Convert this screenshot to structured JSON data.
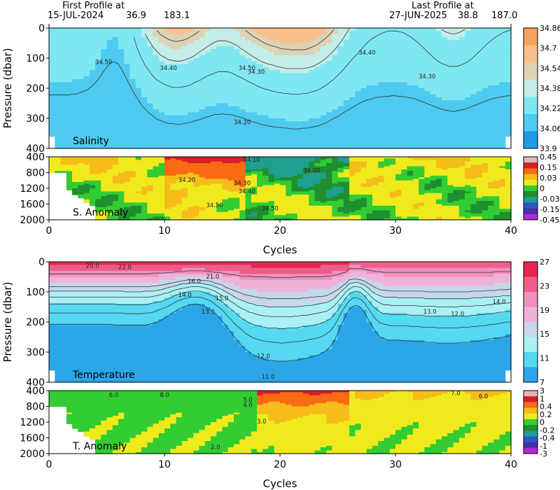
{
  "header": {
    "first_profile_label": "First Profile at",
    "first_profile_date": "15-JUL-2024",
    "first_profile_lat": "36.9",
    "first_profile_lon": "183.1",
    "last_profile_label": "Last Profile at",
    "last_profile_date": "27-JUN-2025",
    "last_profile_lat": "38.8",
    "last_profile_lon": "187.0"
  },
  "chart_data": [
    {
      "type": "heatmap",
      "name": "Salinity",
      "xlabel": "",
      "ylabel": "Pressure (dbar)",
      "xlim": [
        0,
        40
      ],
      "ylim": [
        400,
        0
      ],
      "yticks": [
        "0",
        "100",
        "200",
        "300",
        "400"
      ],
      "colorbar_labels": [
        "34.86",
        "34.7",
        "34.54",
        "34.38",
        "34.22",
        "34.06",
        "33.9"
      ],
      "colors": [
        "#f5a25a",
        "#f9c08e",
        "#ddd2b4",
        "#c4ede8",
        "#7fe7f2",
        "#4fcaf0",
        "#1c9ce8"
      ],
      "contour_labels": [
        "34.50",
        "34.50",
        "34.40",
        "34.30",
        "34.40",
        "34.30",
        "34.20"
      ]
    },
    {
      "type": "heatmap",
      "name": "S. Anomaly",
      "xlabel": "Cycles",
      "ylabel": "",
      "xlim": [
        0,
        40
      ],
      "ylim": [
        2000,
        400
      ],
      "xticks": [
        "0",
        "10",
        "20",
        "30",
        "40"
      ],
      "yticks": [
        "400",
        "800",
        "1200",
        "1600",
        "2000"
      ],
      "colorbar_labels": [
        "0.45",
        "0.15",
        "0.03",
        "0",
        "-0.03",
        "-0.15",
        "-0.45"
      ],
      "colors": [
        "#e2b6b8",
        "#d71e2a",
        "#f96a12",
        "#f5bc1a",
        "#f0ea1d",
        "#33cc33",
        "#1f8f2f",
        "#1f9f8f",
        "#2a57c7",
        "#4b2ca6",
        "#b12ad6"
      ],
      "contour_labels": [
        "34.10",
        "34.00",
        "34.20",
        "34.30",
        "34.40",
        "34.50",
        "34.50"
      ]
    },
    {
      "type": "heatmap",
      "name": "Temperature",
      "xlabel": "",
      "ylabel": "Pressure (dbar)",
      "xlim": [
        0,
        40
      ],
      "ylim": [
        400,
        0
      ],
      "yticks": [
        "0",
        "100",
        "200",
        "300",
        "400"
      ],
      "colorbar_labels": [
        "27",
        "23",
        "19",
        "15",
        "11",
        "7"
      ],
      "colors": [
        "#e5264f",
        "#ef5d88",
        "#ef8fbe",
        "#efb3d9",
        "#c6d7ec",
        "#aaf0f4",
        "#55d8f2",
        "#2aa6e8"
      ],
      "contour_labels": [
        "20.0",
        "22.0",
        "21.0",
        "16.0",
        "15.0",
        "14.0",
        "13.0",
        "14.0",
        "13.0",
        "12.0",
        "12.0",
        "11.0"
      ]
    },
    {
      "type": "heatmap",
      "name": "T. Anomaly",
      "xlabel": "Cycles",
      "ylabel": "",
      "xlim": [
        0,
        40
      ],
      "ylim": [
        2000,
        400
      ],
      "xticks": [
        "0",
        "10",
        "20",
        "30",
        "40"
      ],
      "yticks": [
        "400",
        "800",
        "1200",
        "1600",
        "2000"
      ],
      "colorbar_labels": [
        "3",
        "1",
        "0.4",
        "0.2",
        "0",
        "-0.2",
        "-0.4",
        "-1",
        "-3"
      ],
      "colors": [
        "#e2b6b8",
        "#d71e2a",
        "#f96a12",
        "#f5bc1a",
        "#f0ea1d",
        "#33cc33",
        "#1f8f2f",
        "#1f9f8f",
        "#2a57c7",
        "#4b2ca6",
        "#b12ad6"
      ],
      "contour_labels": [
        "6.0",
        "8.0",
        "5.0",
        "4.0",
        "3.0",
        "7.0",
        "6.0",
        "2.0"
      ]
    }
  ]
}
